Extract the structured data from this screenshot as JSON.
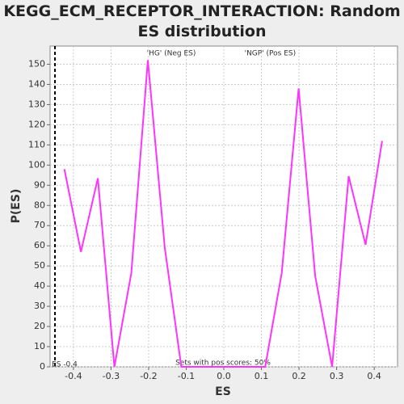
{
  "chart_data": {
    "type": "line",
    "title": "KEGG_ECM_RECEPTOR_INTERACTION: Random ES distribution",
    "x_label": "ES",
    "y_label": "P(ES)",
    "x": [
      -0.424,
      -0.38,
      -0.335,
      -0.291,
      -0.246,
      -0.202,
      -0.157,
      -0.113,
      -0.068,
      -0.024,
      0.021,
      0.065,
      0.11,
      0.154,
      0.199,
      0.243,
      0.288,
      0.332,
      0.377,
      0.421
    ],
    "series": [
      {
        "name": "P(ES)",
        "color": "#ff33ff",
        "values": [
          98,
          57,
          93.5,
          0,
          46.5,
          152,
          59,
          0,
          0,
          0,
          0,
          0,
          0,
          46.5,
          138,
          45,
          0,
          94.5,
          60.5,
          112
        ]
      }
    ],
    "xlim": [
      -0.462,
      0.462
    ],
    "ylim": [
      0,
      159
    ],
    "xticks": [
      -0.4,
      -0.3,
      -0.2,
      -0.1,
      {
        "value": 0,
        "label": "0.0"
      },
      0.1,
      0.2,
      0.3,
      0.4
    ],
    "yticks": [
      0,
      10,
      20,
      30,
      40,
      50,
      60,
      70,
      80,
      90,
      100,
      110,
      120,
      130,
      140,
      150
    ],
    "grid": true,
    "es_line": -0.449,
    "es_label": "ES -0.4",
    "neg_label": "'HG' (Neg ES)",
    "neg_color": "#0000ff",
    "pos_label": "'NGP' (Pos ES)",
    "pos_color": "#ff0000",
    "pos_scores_label": "Sets with pos scores: 50%"
  }
}
